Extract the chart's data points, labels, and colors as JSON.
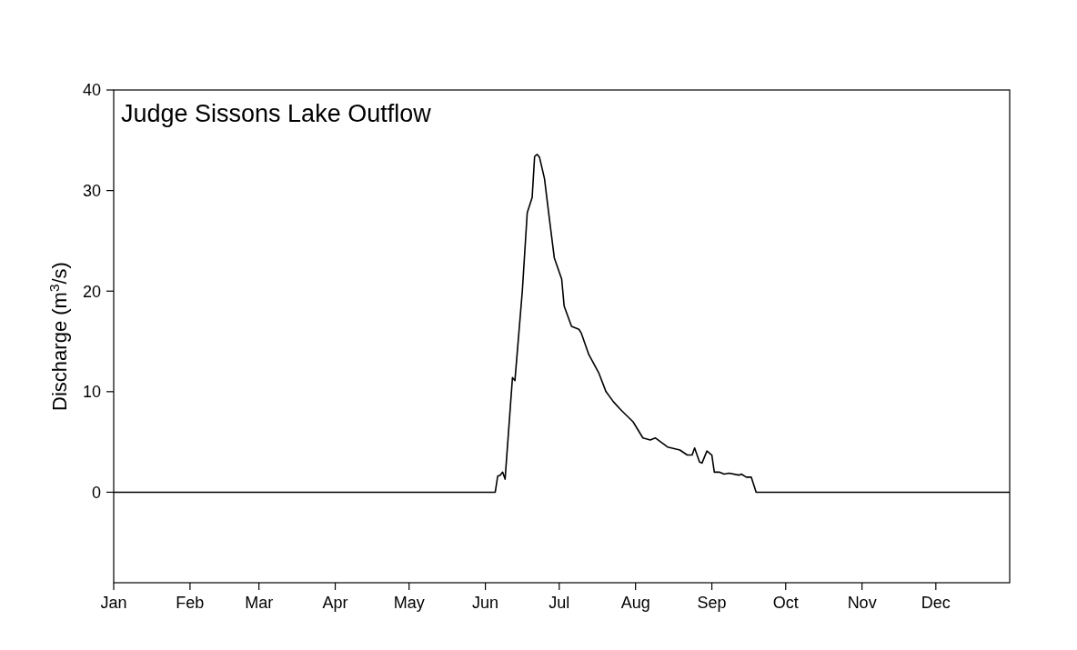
{
  "chart_data": {
    "type": "line",
    "title": "Judge Sissons Lake Outflow",
    "ylabel": "Discharge (m$^{3}$/s)",
    "x": [
      "--01-01",
      "--06-05",
      "--06-06",
      "--06-07",
      "--06-08",
      "--06-09",
      "--06-12",
      "--06-13",
      "--06-16",
      "--06-18",
      "--06-20",
      "--06-21",
      "--06-22",
      "--06-23",
      "--06-25",
      "--06-27",
      "--06-29",
      "--07-02",
      "--07-03",
      "--07-06",
      "--07-09",
      "--07-10",
      "--07-13",
      "--07-17",
      "--07-20",
      "--07-23",
      "--07-26",
      "--07-31",
      "--08-04",
      "--08-07",
      "--08-09",
      "--08-14",
      "--08-19",
      "--08-22",
      "--08-24",
      "--08-25",
      "--08-27",
      "--08-28",
      "--08-30",
      "--09-01",
      "--09-02",
      "--09-04",
      "--09-06",
      "--09-08",
      "--09-12",
      "--09-13",
      "--09-15",
      "--09-17",
      "--09-19",
      "--12-31"
    ],
    "series": [
      {
        "color": "#000000",
        "values": [
          0,
          0,
          1.6,
          1.7,
          2.0,
          1.3,
          11.4,
          11.1,
          20,
          27.8,
          29.3,
          33.4,
          33.6,
          33.3,
          31.2,
          27.2,
          23.3,
          21.2,
          18.5,
          16.5,
          16.2,
          15.8,
          13.7,
          11.9,
          10.0,
          9.0,
          8.2,
          7.0,
          5.4,
          5.2,
          5.4,
          4.5,
          4.2,
          3.7,
          3.7,
          4.4,
          3.0,
          2.9,
          4.1,
          3.7,
          2.0,
          2.0,
          1.8,
          1.9,
          1.7,
          1.8,
          1.5,
          1.5,
          0,
          0
        ]
      }
    ],
    "xlim": [
      "--01-01",
      "--12-31"
    ],
    "xticks": [
      {
        "value": "--01-01",
        "label": "Jan"
      },
      {
        "value": "--02-01",
        "label": "Feb"
      },
      {
        "value": "--03-01",
        "label": "Mar"
      },
      {
        "value": "--04-01",
        "label": "Apr"
      },
      {
        "value": "--05-01",
        "label": "May"
      },
      {
        "value": "--06-01",
        "label": "Jun"
      },
      {
        "value": "--07-01",
        "label": "Jul"
      },
      {
        "value": "--08-01",
        "label": "Aug"
      },
      {
        "value": "--09-01",
        "label": "Sep"
      },
      {
        "value": "--10-01",
        "label": "Oct"
      },
      {
        "value": "--11-01",
        "label": "Nov"
      },
      {
        "value": "--12-01",
        "label": "Dec"
      }
    ],
    "ylim": [
      -9,
      40
    ],
    "yticks": [
      0,
      10,
      20,
      30,
      40
    ],
    "grid": false,
    "marker": "none",
    "line_style": "solid"
  }
}
